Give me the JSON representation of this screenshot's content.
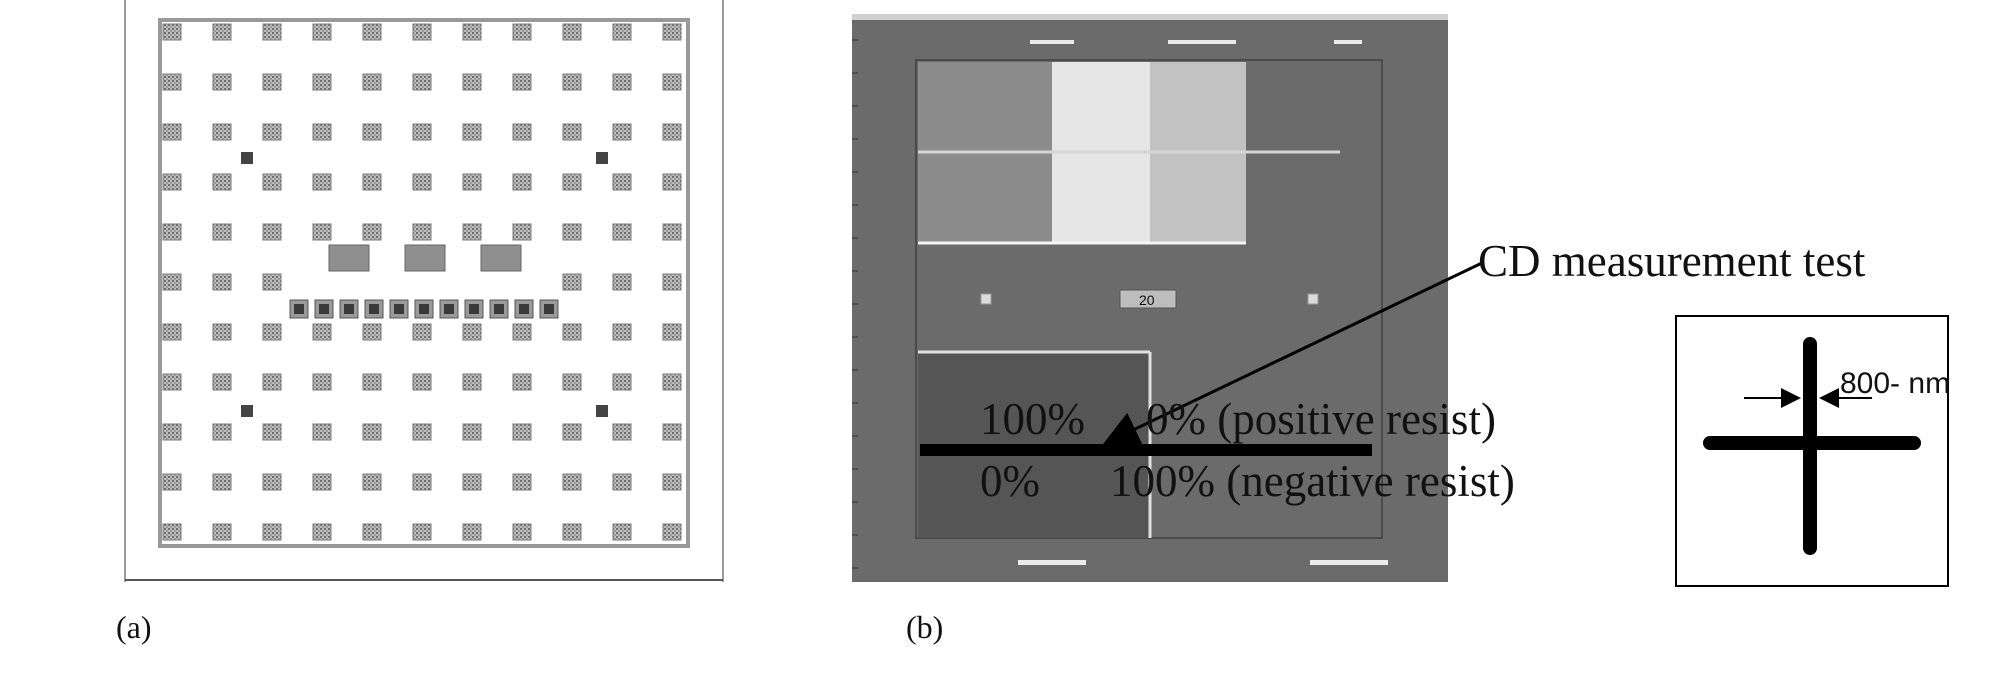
{
  "panels": {
    "a": {
      "caption": "(a)"
    },
    "b": {
      "caption": "(b)",
      "cd_label": "CD measurement test",
      "line1_left": "100%",
      "line1_right": "0% (positive resist)",
      "line2_left": "0%",
      "line2_right": "100% (negative resist)",
      "small_label": "20"
    }
  },
  "cross": {
    "dimension_label": "800- nm"
  },
  "colors": {
    "grid_chip": "#8c8c8c",
    "panel_b_bg": "#6b6b6b",
    "field_dark": "#555555",
    "arrow": "#000000"
  }
}
